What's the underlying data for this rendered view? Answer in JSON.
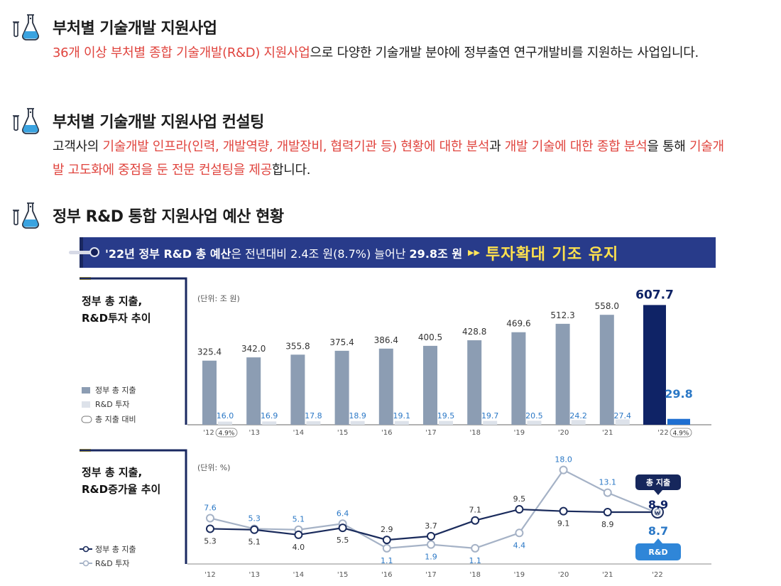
{
  "sections": [
    {
      "title": "부처별 기술개발 지원사업",
      "body": [
        {
          "t": "36개 이상 부처별 종합 기술개발(R&D) 지원사업",
          "hl": true
        },
        {
          "t": "으로 다양한 기술개발 분야에 정부출연 연구개발비를 지원하는 사업입니다.",
          "hl": false
        }
      ]
    },
    {
      "title": "부처별 기술개발 지원사업 컨설팅",
      "body": [
        {
          "t": "고객사의 ",
          "hl": false
        },
        {
          "t": "기술개발 인프라(인력, 개발역량, 개발장비, 협력기관 등) 현황에 대한 분석",
          "hl": true
        },
        {
          "t": "과 ",
          "hl": false
        },
        {
          "t": "개발 기술에 대한 종합 분석",
          "hl": true
        },
        {
          "t": "을 통해 ",
          "hl": false
        },
        {
          "t": "기술개발 고도화에 중점을 둔 전문 컨설팅을 제공",
          "hl": true
        },
        {
          "t": "합니다.",
          "hl": false
        }
      ]
    },
    {
      "title": "정부 R&D 통합 지원사업 예산 현황",
      "body": []
    }
  ],
  "banner": {
    "lead": "'22년 정부 R&D 총 예산",
    "mid": "은 전년대비 2.4조 원(8.7%) 늘어난",
    "amount": "29.8조 원",
    "arrows": "▶▶",
    "highlight": "투자확대 기조 유지"
  },
  "colors": {
    "accent_red": "#e0443e",
    "navy": "#1a2860",
    "banner_bg": "#283b8a",
    "highlight_yellow": "#ffe14d",
    "bar_gray": "#8c9db3",
    "bar_light": "#dde2ea",
    "bar_navy": "#0f2366",
    "bar_blue": "#1f6fd1",
    "line_navy": "#1a2b5c",
    "line_gray": "#a5b2c6",
    "label_blue": "#2b78c6"
  },
  "chart_data": [
    {
      "type": "bar",
      "title": "정부 총 지출, R&D투자 추이",
      "unit_note": "(단위: 조 원)",
      "categories": [
        "'12",
        "'13",
        "'14",
        "'15",
        "'16",
        "'17",
        "'18",
        "'19",
        "'20",
        "'21",
        "'22"
      ],
      "series": [
        {
          "name": "정부 총 지출",
          "values": [
            325.4,
            342.0,
            355.8,
            375.4,
            386.4,
            400.5,
            428.8,
            469.6,
            512.3,
            558.0,
            607.7
          ]
        },
        {
          "name": "R&D 투자",
          "values": [
            16.0,
            16.9,
            17.8,
            18.9,
            19.1,
            19.5,
            19.7,
            20.5,
            24.2,
            27.4,
            29.8
          ]
        }
      ],
      "value_labels": {
        "total": [
          "325.4",
          "342.0",
          "355.8",
          "375.4",
          "386.4",
          "400.5",
          "428.8",
          "469.6",
          "512.3",
          "558.0",
          "607.7"
        ],
        "rd": [
          "16.0",
          "16.9",
          "17.8",
          "18.9",
          "19.1",
          "19.5",
          "19.7",
          "20.5",
          "24.2",
          "27.4",
          "29.8"
        ]
      },
      "legend": [
        "정부 총 지출",
        "R&D 투자",
        "총 지출 대비"
      ],
      "ratio_badges": [
        {
          "category": "'12",
          "text": "4.9%"
        },
        {
          "category": "'22",
          "text": "4.9%"
        }
      ],
      "ylim": [
        0,
        620
      ],
      "legend_position": "left"
    },
    {
      "type": "line",
      "title": "정부 총 지출, R&D증가율 추이",
      "unit_note": "(단위: %)",
      "categories": [
        "'12",
        "'13",
        "'14",
        "'15",
        "'16",
        "'17",
        "'18",
        "'19",
        "'20",
        "'21",
        "'22"
      ],
      "series": [
        {
          "name": "정부 총 지출",
          "values": [
            5.3,
            5.1,
            4.0,
            5.5,
            2.9,
            3.7,
            7.1,
            9.5,
            9.1,
            8.9,
            8.9
          ]
        },
        {
          "name": "R&D 투자",
          "values": [
            7.6,
            5.3,
            5.1,
            6.4,
            1.1,
            1.9,
            1.1,
            4.4,
            18.0,
            13.1,
            8.7
          ]
        }
      ],
      "value_labels": {
        "total": [
          "5.3",
          "5.1",
          "4.0",
          "5.5",
          "2.9",
          "3.7",
          "7.1",
          "9.5",
          "9.1",
          "8.9",
          "8.9"
        ],
        "rd": [
          "7.6",
          "5.3",
          "5.1",
          "6.4",
          "1.1",
          "1.9",
          "1.1",
          "4.4",
          "18.0",
          "13.1",
          "8.7"
        ]
      },
      "callouts": {
        "total": "총 지출",
        "rd": "R&D",
        "marker": "w"
      },
      "legend": [
        "정부 총 지출",
        "R&D 투자"
      ],
      "ylim": [
        0,
        19
      ],
      "legend_position": "left"
    }
  ]
}
